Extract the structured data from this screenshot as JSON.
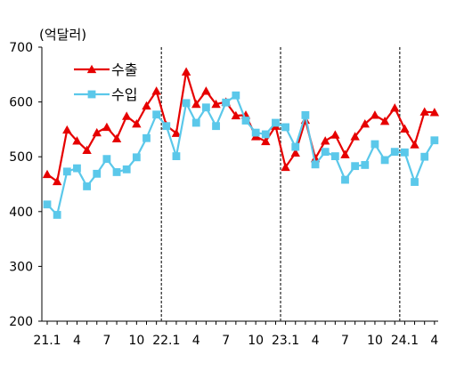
{
  "chart_data": {
    "type": "line",
    "unit_label": "(억달러)",
    "ylim": [
      200,
      700
    ],
    "y_ticks": [
      "200",
      "300",
      "400",
      "500",
      "600",
      "700"
    ],
    "x_labels": [
      "21.1",
      "4",
      "7",
      "10",
      "22.1",
      "4",
      "7",
      "10",
      "23.1",
      "4",
      "7",
      "10",
      "24.1",
      "4"
    ],
    "x_label_months": [
      1,
      4,
      7,
      10,
      13,
      16,
      19,
      22,
      25,
      28,
      31,
      34,
      37,
      40
    ],
    "year_dividers_after_month": [
      12,
      24,
      36
    ],
    "grid": false,
    "legend_position": "top-left",
    "series": [
      {
        "name": "수출",
        "color": "#e60000",
        "marker": "triangle",
        "x": [
          1,
          2,
          3,
          4,
          5,
          6,
          7,
          8,
          9,
          10,
          11,
          12,
          13,
          14,
          15,
          16,
          17,
          18,
          19,
          20,
          21,
          22,
          23,
          24,
          25,
          26,
          27,
          28,
          29,
          30,
          31,
          32,
          33,
          34,
          35,
          36,
          37,
          38,
          39,
          40
        ],
        "values": [
          468,
          455,
          549,
          529,
          512,
          544,
          554,
          533,
          574,
          560,
          593,
          620,
          557,
          543,
          655,
          596,
          620,
          596,
          600,
          575,
          576,
          537,
          528,
          556,
          481,
          507,
          567,
          497,
          529,
          540,
          504,
          537,
          560,
          576,
          565,
          589,
          551,
          522,
          582,
          581
        ]
      },
      {
        "name": "수입",
        "color": "#5bc8ea",
        "marker": "square",
        "x": [
          1,
          2,
          3,
          4,
          5,
          6,
          7,
          8,
          9,
          10,
          11,
          12,
          13,
          14,
          15,
          16,
          17,
          18,
          19,
          20,
          21,
          22,
          23,
          24,
          25,
          26,
          27,
          28,
          29,
          30,
          31,
          32,
          33,
          34,
          35,
          36,
          37,
          38,
          39,
          40
        ],
        "values": [
          413,
          394,
          473,
          479,
          446,
          469,
          496,
          472,
          477,
          499,
          534,
          577,
          556,
          501,
          598,
          562,
          590,
          556,
          599,
          612,
          566,
          544,
          541,
          562,
          554,
          518,
          576,
          486,
          509,
          501,
          458,
          483,
          485,
          523,
          494,
          509,
          508,
          454,
          500,
          530
        ]
      }
    ]
  }
}
